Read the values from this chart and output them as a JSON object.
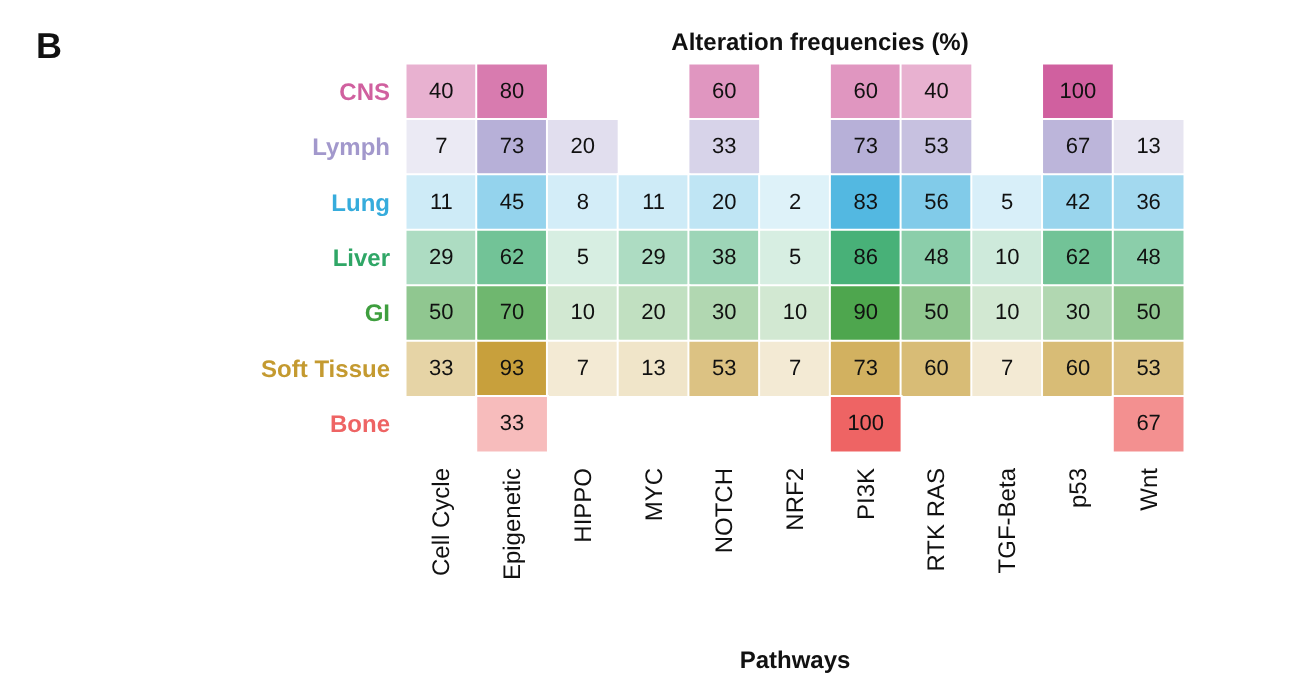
{
  "chart_data": {
    "type": "heatmap",
    "title": "Alteration frequencies (%)",
    "xlabel": "Pathways",
    "annotations": [
      "B"
    ],
    "categories": [
      "Cell Cycle",
      "Epigenetic",
      "HIPPO",
      "MYC",
      "NOTCH",
      "NRF2",
      "PI3K",
      "RTK RAS",
      "TGF-Beta",
      "p53",
      "Wnt"
    ],
    "y_categories": [
      "CNS",
      "Lymph",
      "Lung",
      "Liver",
      "GI",
      "Soft Tissue",
      "Bone"
    ],
    "colors": [
      "#d0609f",
      "#a298cc",
      "#36acdc",
      "#2fa666",
      "#3e9e3e",
      "#c49a30",
      "#ee6464"
    ],
    "cells": [
      [
        40,
        80,
        null,
        null,
        60,
        null,
        60,
        40,
        null,
        100,
        null
      ],
      [
        7,
        73,
        20,
        null,
        33,
        null,
        73,
        53,
        null,
        67,
        13
      ],
      [
        11,
        45,
        8,
        11,
        20,
        2,
        83,
        56,
        5,
        42,
        36
      ],
      [
        29,
        62,
        5,
        29,
        38,
        5,
        86,
        48,
        10,
        62,
        48
      ],
      [
        50,
        70,
        10,
        20,
        30,
        10,
        90,
        50,
        10,
        30,
        50
      ],
      [
        33,
        93,
        7,
        13,
        53,
        7,
        73,
        60,
        7,
        60,
        53
      ],
      [
        null,
        33,
        null,
        null,
        null,
        null,
        100,
        null,
        null,
        null,
        67
      ]
    ],
    "data_labels": true
  }
}
